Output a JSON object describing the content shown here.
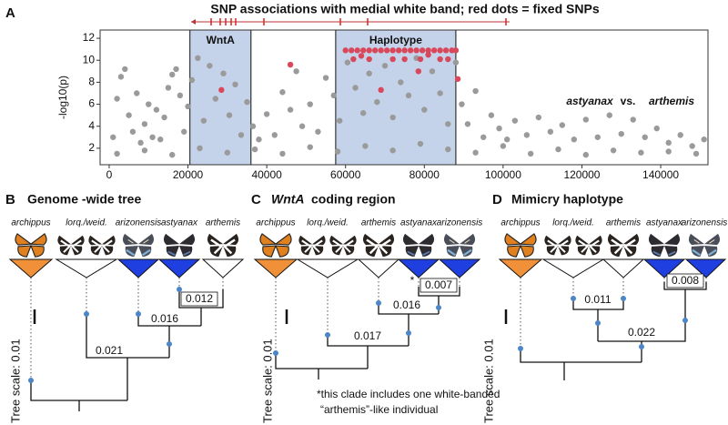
{
  "chart_data": {
    "type": "scatter",
    "panel": "A",
    "title": "SNP associations with medial white band; red dots = fixed SNPs",
    "y_label": "-log10(p)",
    "xlim": [
      -2300,
      152000
    ],
    "ylim": [
      0.5,
      12.75
    ],
    "xticks": [
      0,
      20000,
      40000,
      60000,
      80000,
      100000,
      120000,
      140000
    ],
    "yticks": [
      2,
      4,
      6,
      8,
      10,
      12
    ],
    "grid": false,
    "regions": [
      {
        "label": "WntA",
        "xlim": [
          20500,
          36000
        ],
        "color": "#c5d3ea"
      },
      {
        "label": "Haplotype",
        "xlim": [
          57500,
          88000
        ],
        "color": "#c5d3ea"
      }
    ],
    "annotations": [
      "astyanax",
      "vs.",
      "arthemis"
    ],
    "series": [
      {
        "color": "#9a9a9a",
        "x": [
          1000,
          2000,
          3000,
          4000,
          5000,
          6000,
          7000,
          8000,
          9000,
          10000,
          11000,
          12000,
          13000,
          14000,
          15000,
          16000,
          17000,
          18000,
          19000,
          20000,
          21000,
          22500,
          24000,
          25500,
          27000,
          29000,
          30500,
          32000,
          33500,
          35000,
          36500,
          38000,
          40000,
          42000,
          44000,
          46000,
          47500,
          49000,
          51000,
          53000,
          55000,
          57000,
          58500,
          60500,
          62500,
          64500,
          66000,
          68000,
          70000,
          72000,
          74000,
          76000,
          78000,
          80000,
          82000,
          84000,
          86000,
          88000,
          89500,
          91000,
          93000,
          95000,
          97000,
          99000,
          101000,
          103000,
          106000,
          109000,
          112000,
          115000,
          118000,
          121000,
          124000,
          127000,
          130000,
          133000,
          136000,
          139000,
          142000,
          145000,
          148000,
          151000,
          2000,
          9000,
          16000,
          23000,
          30000,
          37000,
          44000,
          51000,
          58000,
          65000,
          72000,
          79000,
          86000,
          93000,
          100000,
          107000,
          114000,
          121000,
          128000,
          135000,
          142000,
          149000
        ],
        "values": [
          3,
          6.5,
          8.5,
          9.2,
          5,
          3.5,
          7,
          2.5,
          4.2,
          6,
          3,
          5.5,
          2.8,
          4.8,
          7.5,
          8.7,
          9.2,
          6.8,
          3.5,
          5.8,
          8.2,
          10.2,
          4.5,
          9.5,
          6.5,
          8.8,
          5,
          7.8,
          3.2,
          6.2,
          4,
          2.8,
          5.1,
          3.2,
          7.1,
          5.5,
          9,
          4,
          6,
          3.5,
          8.4,
          6.8,
          4.5,
          9.8,
          7.5,
          5.2,
          8.8,
          6.2,
          9.5,
          4.8,
          8,
          6.8,
          10.2,
          5.5,
          9,
          7,
          4.2,
          9.8,
          6,
          4.2,
          7.2,
          3,
          5,
          3.8,
          2.8,
          4.5,
          3.2,
          4.8,
          3.5,
          4.1,
          2.8,
          4.6,
          3,
          5,
          3.3,
          4.6,
          3,
          3.8,
          2.5,
          3.2,
          2.2,
          2.8,
          1.5,
          1.8,
          1.4,
          2,
          1.6,
          1.9,
          1.5,
          2.1,
          1.7,
          2.2,
          1.8,
          2.4,
          1.9,
          1.6,
          2.2,
          1.5,
          1.9,
          1.4,
          1.8,
          1.6,
          1.7,
          1.5
        ]
      },
      {
        "color": "#d9475a",
        "x": [
          28500,
          46000,
          69000,
          60000,
          61500,
          63000,
          64500,
          66000,
          67500,
          69000,
          70500,
          72000,
          73500,
          75000,
          76500,
          78000,
          79500,
          81000,
          82500,
          84000,
          85500,
          87000,
          88000,
          62000,
          66000,
          72000,
          75000,
          79000,
          84000,
          86000,
          78500,
          88500,
          64000,
          81000
        ],
        "values": [
          7.3,
          9.6,
          7.3,
          10.9,
          10.9,
          10.9,
          10.9,
          10.9,
          10.9,
          10.9,
          10.9,
          10.9,
          10.9,
          10.9,
          10.9,
          10.9,
          10.9,
          10.9,
          10.9,
          10.9,
          10.9,
          10.9,
          10.9,
          10.1,
          10.1,
          10.1,
          10.1,
          10.1,
          10.1,
          10.1,
          9,
          8.3,
          10.4,
          10.5
        ]
      }
    ]
  },
  "trees": [
    {
      "panel": "B",
      "title": "Genome -wide tree",
      "taxa": [
        "archippus",
        "lorq./weid.",
        "arizonensis",
        "astyanax",
        "arthemis"
      ],
      "branch_labels": [
        "0.012",
        "0.016",
        "0.021"
      ],
      "scale": "Tree scale: 0.01"
    },
    {
      "panel": "C",
      "title_italic": "WntA",
      "title": "coding region",
      "taxa": [
        "archippus",
        "lorq./weid.",
        "arthemis",
        "astyanax",
        "arizonensis"
      ],
      "branch_labels": [
        "0.007",
        "0.016",
        "0.017"
      ],
      "star": "*",
      "note": [
        "*this clade includes one white-banded",
        "“arthemis”-like individual"
      ],
      "scale": "Tree scale: 0.01"
    },
    {
      "panel": "D",
      "title": "Mimicry haplotype",
      "taxa": [
        "archippus",
        "lorq./weid.",
        "arthemis",
        "astyanax",
        "arizonensis"
      ],
      "branch_labels": [
        "0.011",
        "0.008",
        "0.022"
      ],
      "scale": "Tree scale: 0.01"
    }
  ]
}
